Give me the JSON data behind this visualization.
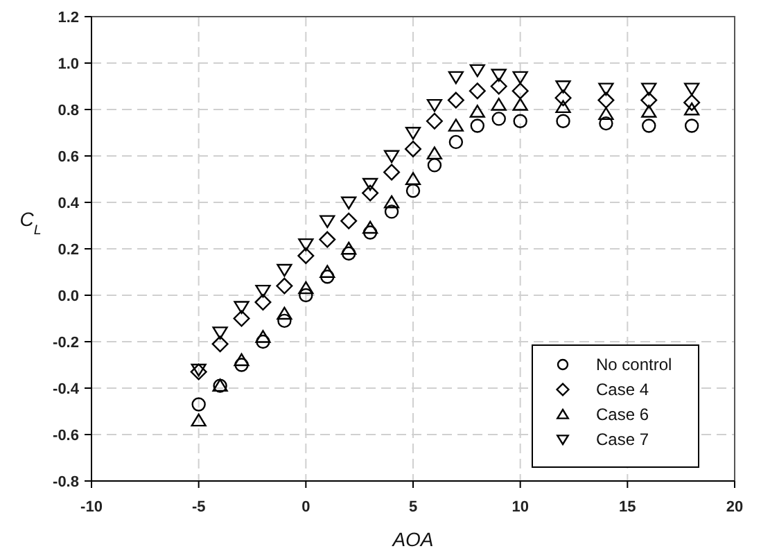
{
  "chart_data": {
    "type": "scatter",
    "xlabel": "AOA",
    "ylabel": "C$_{L}$",
    "x": [
      -5,
      -4,
      -3,
      -2,
      -1,
      0,
      1,
      2,
      3,
      4,
      5,
      6,
      7,
      8,
      9,
      10,
      12,
      14,
      16,
      18
    ],
    "series": [
      {
        "name": "No control",
        "color": "#000000",
        "marker": "circle",
        "values": [
          -0.47,
          -0.39,
          -0.3,
          -0.2,
          -0.11,
          0.0,
          0.08,
          0.18,
          0.27,
          0.36,
          0.45,
          0.56,
          0.66,
          0.73,
          0.76,
          0.75,
          0.75,
          0.74,
          0.73,
          0.73
        ]
      },
      {
        "name": "Case 4",
        "color": "#000000",
        "marker": "diamond",
        "values": [
          -0.33,
          -0.21,
          -0.1,
          -0.03,
          0.04,
          0.17,
          0.24,
          0.32,
          0.44,
          0.53,
          0.63,
          0.75,
          0.84,
          0.88,
          0.9,
          0.88,
          0.85,
          0.84,
          0.84,
          0.83
        ]
      },
      {
        "name": "Case 6",
        "color": "#000000",
        "marker": "triangle",
        "values": [
          -0.54,
          -0.39,
          -0.28,
          -0.18,
          -0.08,
          0.03,
          0.1,
          0.2,
          0.29,
          0.4,
          0.5,
          0.61,
          0.73,
          0.79,
          0.82,
          0.82,
          0.81,
          0.78,
          0.79,
          0.8
        ]
      },
      {
        "name": "Case 7",
        "color": "#000000",
        "marker": "triangle-down",
        "values": [
          -0.32,
          -0.16,
          -0.05,
          0.02,
          0.11,
          0.22,
          0.32,
          0.4,
          0.48,
          0.6,
          0.7,
          0.82,
          0.94,
          0.97,
          0.95,
          0.94,
          0.9,
          0.89,
          0.89,
          0.89
        ]
      }
    ],
    "xlim": [
      -10,
      20
    ],
    "xticks": [
      -10,
      -5,
      0,
      5,
      10,
      15,
      20
    ],
    "ylim": [
      -0.8,
      1.2
    ],
    "yticks": [
      {
        "value": -0.8,
        "label": "-0.8"
      },
      {
        "value": -0.6,
        "label": "-0.6"
      },
      {
        "value": -0.4,
        "label": "-0.4"
      },
      {
        "value": -0.2,
        "label": "-0.2"
      },
      {
        "value": 0,
        "label": "0.0"
      },
      {
        "value": 0.2,
        "label": "0.2"
      },
      {
        "value": 0.4,
        "label": "0.4"
      },
      {
        "value": 0.6,
        "label": "0.6"
      },
      {
        "value": 0.8,
        "label": "0.8"
      },
      {
        "value": 1.0,
        "label": "1.0"
      },
      {
        "value": 1.2,
        "label": "1.2"
      }
    ],
    "grid": true,
    "legend": "bottom right"
  }
}
